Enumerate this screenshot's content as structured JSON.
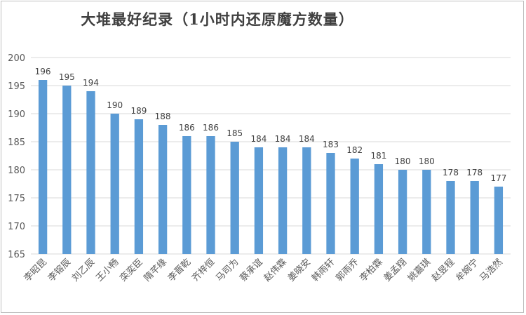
{
  "chart_data": {
    "type": "bar",
    "title": "大堆最好纪录（1小时内还原魔方数量）",
    "categories": [
      "李昭昆",
      "李镕辰",
      "刘乙辰",
      "王小畅",
      "栾奕臣",
      "隋芊缘",
      "李晋乾",
      "齐梓恒",
      "马司为",
      "蔡承谊",
      "赵伟霖",
      "姜晓安",
      "韩雨轩",
      "郭雨乔",
      "李柏霖",
      "姜孟翔",
      "姚嘉琪",
      "赵昱程",
      "牟婉宁",
      "马浩然"
    ],
    "values": [
      196,
      195,
      194,
      190,
      189,
      188,
      186,
      186,
      185,
      184,
      184,
      184,
      183,
      182,
      181,
      180,
      180,
      178,
      178,
      177
    ],
    "ylim": [
      165,
      200
    ],
    "yticks": [
      165,
      170,
      175,
      180,
      185,
      190,
      195,
      200
    ],
    "xlabel": "",
    "ylabel": "",
    "grid": true,
    "data_labels": true,
    "bar_color": "#5b9bd5",
    "grid_color": "#d9d9d9",
    "axis_text_color": "#595959"
  }
}
